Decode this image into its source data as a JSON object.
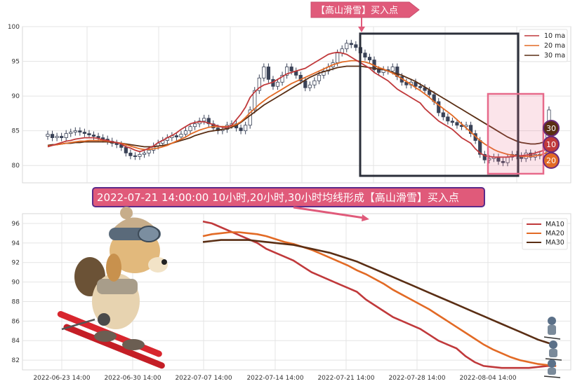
{
  "colors": {
    "ma10": "#c0393b",
    "ma20": "#e26a25",
    "ma30": "#5a2e14",
    "candle_up": "#ffffff",
    "candle_down": "#3a4257",
    "banner_bg": "#e05a7a",
    "banner_border": "#5b2b8a",
    "box_dark": "#2b2f3a",
    "box_pink": "#e76a8b"
  },
  "top_annotation": "【高山滑雪】买入点",
  "banner_text": "2022-07-21 14:00:00 10小时,20小时,30小时均线形成【高山滑雪】买入点",
  "badges": [
    "30",
    "10",
    "20"
  ],
  "chart_data": [
    {
      "type": "candlestick",
      "ylim": [
        77.5,
        100
      ],
      "yticks": [
        80,
        85,
        90,
        95,
        100
      ],
      "legend": [
        "10 ma",
        "20 ma",
        "30 ma"
      ],
      "legend_position": "top-right",
      "grid": true,
      "close": [
        84.5,
        84.0,
        84.2,
        84.0,
        84.6,
        84.8,
        85.0,
        84.8,
        84.6,
        84.4,
        84.2,
        84.0,
        83.8,
        83.5,
        83.2,
        83.0,
        82.6,
        81.8,
        81.4,
        81.3,
        81.6,
        81.8,
        82.2,
        82.8,
        83.2,
        83.6,
        84.0,
        84.3,
        84.1,
        84.5,
        85.0,
        85.6,
        86.0,
        86.4,
        86.8,
        86.0,
        85.4,
        85.0,
        85.2,
        85.8,
        86.0,
        85.4,
        85.0,
        85.8,
        88.0,
        90.8,
        92.6,
        94.2,
        92.4,
        91.4,
        92.0,
        93.0,
        94.2,
        93.6,
        93.0,
        92.2,
        91.2,
        91.6,
        92.2,
        93.0,
        93.6,
        94.2,
        94.8,
        96.2,
        96.8,
        97.6,
        97.4,
        97.0,
        96.2,
        95.6,
        95.2,
        93.8,
        93.4,
        93.8,
        93.6,
        94.2,
        92.8,
        92.0,
        91.6,
        92.0,
        91.4,
        91.2,
        90.8,
        90.2,
        89.2,
        87.6,
        87.0,
        86.4,
        86.2,
        85.8,
        85.6,
        85.8,
        84.6,
        83.6,
        81.6,
        80.8,
        81.0,
        81.2,
        80.6,
        80.4,
        81.2,
        81.6,
        81.4,
        81.0,
        81.8,
        81.2,
        81.6,
        81.4,
        85.2,
        88.0
      ],
      "ma10": [
        82.7,
        82.9,
        83.1,
        83.3,
        83.5,
        83.6,
        83.8,
        83.9,
        84.0,
        84.0,
        84.0,
        83.9,
        83.7,
        83.6,
        83.4,
        83.3,
        83.1,
        82.7,
        82.5,
        82.2,
        82.0,
        82.2,
        82.5,
        82.8,
        83.3,
        83.6,
        84.0,
        84.3,
        84.7,
        85.2,
        85.6,
        86.0,
        86.2,
        86.3,
        86.3,
        86.1,
        85.9,
        85.7,
        85.5,
        85.5,
        85.8,
        86.6,
        87.4,
        88.4,
        89.8,
        90.6,
        91.2,
        91.6,
        91.8,
        92.0,
        92.4,
        92.8,
        93.2,
        93.4,
        93.6,
        93.8,
        94.0,
        94.4,
        94.8,
        95.2,
        95.6,
        96.0,
        96.2,
        96.3,
        96.2,
        96.0,
        95.6,
        95.2,
        94.8,
        94.4,
        94.0,
        93.4,
        93.0,
        92.6,
        92.2,
        91.6,
        91.0,
        90.6,
        90.2,
        89.8,
        89.4,
        89.0,
        88.2,
        87.6,
        87.0,
        86.4,
        86.0,
        85.6,
        85.2,
        84.6,
        84.0,
        83.6,
        83.2,
        82.4,
        81.8,
        81.4,
        81.3,
        81.2,
        81.2,
        81.2,
        81.2,
        81.3,
        81.4,
        81.4,
        81.5,
        81.6,
        81.8,
        82.0,
        82.2,
        82.6
      ],
      "ma20": [
        82.8,
        82.9,
        83.0,
        83.1,
        83.2,
        83.3,
        83.4,
        83.5,
        83.5,
        83.6,
        83.6,
        83.6,
        83.6,
        83.5,
        83.4,
        83.3,
        83.2,
        83.0,
        82.8,
        82.6,
        82.4,
        82.3,
        82.3,
        82.4,
        82.5,
        82.7,
        82.9,
        83.2,
        83.5,
        83.8,
        84.1,
        84.5,
        84.8,
        85.1,
        85.3,
        85.5,
        85.6,
        85.6,
        85.6,
        85.6,
        85.7,
        85.9,
        86.3,
        86.9,
        87.6,
        88.2,
        88.8,
        89.3,
        89.8,
        90.2,
        90.6,
        91.0,
        91.4,
        91.8,
        92.1,
        92.4,
        92.7,
        93.0,
        93.3,
        93.6,
        93.9,
        94.2,
        94.5,
        94.7,
        94.9,
        95.0,
        95.1,
        95.1,
        95.0,
        94.9,
        94.7,
        94.4,
        94.1,
        93.9,
        93.6,
        93.3,
        92.9,
        92.5,
        92.1,
        91.7,
        91.2,
        90.8,
        90.3,
        89.8,
        89.2,
        88.7,
        88.2,
        87.7,
        87.2,
        86.6,
        86.0,
        85.4,
        84.8,
        84.2,
        83.6,
        83.1,
        82.7,
        82.3,
        82.0,
        81.8,
        81.6,
        81.5,
        81.4,
        81.3,
        81.3,
        81.3,
        81.4,
        81.5,
        81.7,
        82.1
      ],
      "ma30": [
        82.9,
        83.0,
        83.0,
        83.1,
        83.2,
        83.2,
        83.3,
        83.3,
        83.4,
        83.4,
        83.4,
        83.4,
        83.4,
        83.4,
        83.3,
        83.3,
        83.2,
        83.1,
        83.0,
        82.9,
        82.8,
        82.7,
        82.7,
        82.7,
        82.8,
        82.9,
        83.0,
        83.2,
        83.4,
        83.6,
        83.8,
        84.0,
        84.3,
        84.5,
        84.7,
        84.9,
        85.0,
        85.1,
        85.2,
        85.3,
        85.5,
        85.8,
        86.2,
        86.7,
        87.2,
        87.7,
        88.2,
        88.7,
        89.1,
        89.5,
        89.9,
        90.3,
        90.7,
        91.1,
        91.5,
        91.9,
        92.3,
        92.7,
        93.0,
        93.3,
        93.5,
        93.7,
        93.9,
        94.1,
        94.2,
        94.3,
        94.3,
        94.3,
        94.3,
        94.2,
        94.1,
        94.0,
        93.9,
        93.8,
        93.6,
        93.4,
        93.2,
        93.0,
        92.7,
        92.4,
        92.1,
        91.7,
        91.3,
        90.9,
        90.5,
        90.1,
        89.7,
        89.3,
        88.9,
        88.5,
        88.1,
        87.7,
        87.3,
        86.9,
        86.5,
        86.1,
        85.7,
        85.3,
        84.9,
        84.5,
        84.1,
        83.8,
        83.5,
        83.3,
        83.2,
        83.1,
        83.1,
        83.2,
        83.4,
        83.6
      ]
    },
    {
      "type": "line",
      "ylim": [
        81,
        97
      ],
      "yticks": [
        82,
        84,
        86,
        88,
        90,
        92,
        94,
        96
      ],
      "x_ticks": [
        "2022-06-23 14:00",
        "2022-06-30 14:00",
        "2022-07-07 14:00",
        "2022-07-14 14:00",
        "2022-07-21 14:00",
        "2022-07-28 14:00",
        "2022-08-04 14:00"
      ],
      "legend_position": "top-right",
      "grid": true,
      "series": [
        {
          "name": "MA10",
          "values": [
            96.2,
            96.0,
            95.6,
            95.2,
            94.8,
            94.4,
            94.0,
            93.4,
            93.0,
            92.6,
            92.2,
            91.6,
            91.0,
            90.6,
            90.2,
            89.8,
            89.4,
            89.0,
            88.2,
            87.6,
            87.0,
            86.4,
            86.0,
            85.6,
            85.2,
            84.6,
            84.0,
            83.6,
            83.2,
            82.4,
            81.8,
            81.4,
            81.3,
            81.2,
            81.2,
            81.2,
            81.2,
            81.3,
            81.4,
            81.4
          ]
        },
        {
          "name": "MA20",
          "values": [
            94.7,
            94.9,
            95.0,
            95.1,
            95.1,
            95.0,
            94.9,
            94.7,
            94.4,
            94.1,
            93.9,
            93.6,
            93.3,
            92.9,
            92.5,
            92.1,
            91.7,
            91.2,
            90.8,
            90.3,
            89.8,
            89.2,
            88.7,
            88.2,
            87.7,
            87.2,
            86.6,
            86.0,
            85.4,
            84.8,
            84.2,
            83.6,
            83.1,
            82.7,
            82.3,
            82.0,
            81.8,
            81.6,
            81.5,
            81.4
          ]
        },
        {
          "name": "MA30",
          "values": [
            94.1,
            94.2,
            94.3,
            94.3,
            94.3,
            94.3,
            94.2,
            94.1,
            94.0,
            93.9,
            93.8,
            93.6,
            93.4,
            93.2,
            93.0,
            92.7,
            92.4,
            92.1,
            91.7,
            91.3,
            90.9,
            90.5,
            90.1,
            89.7,
            89.3,
            88.9,
            88.5,
            88.1,
            87.7,
            87.3,
            86.9,
            86.5,
            86.1,
            85.7,
            85.3,
            84.9,
            84.5,
            84.1,
            83.8,
            83.5
          ]
        }
      ]
    }
  ]
}
